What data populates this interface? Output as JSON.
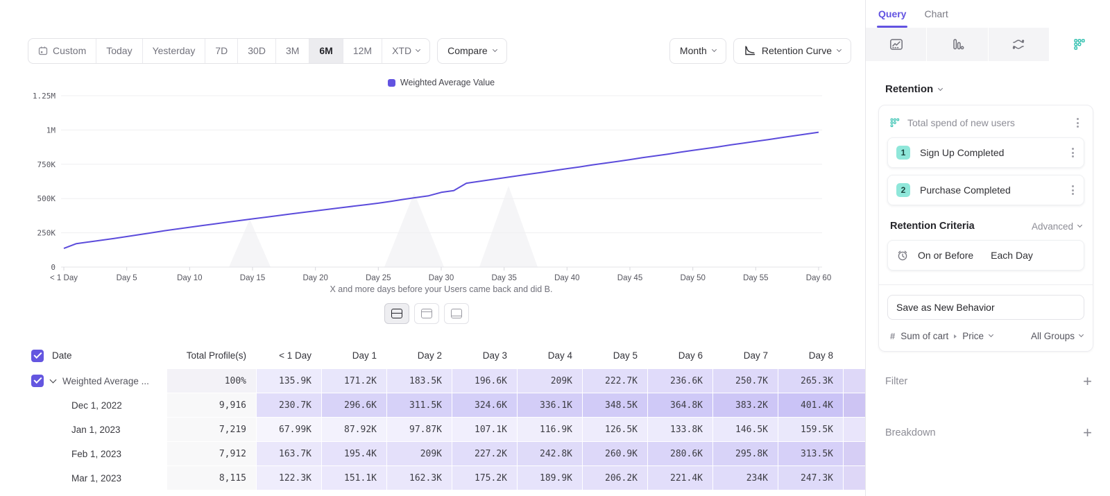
{
  "toolbar": {
    "date_ranges": [
      "Custom",
      "Today",
      "Yesterday",
      "7D",
      "30D",
      "3M",
      "6M",
      "12M",
      "XTD"
    ],
    "active_range": "6M",
    "compare": "Compare",
    "granularity": "Month",
    "chart_type": "Retention Curve"
  },
  "chart": {
    "legend": "Weighted Average Value",
    "caption": "X and more days before your Users came back and did B."
  },
  "chart_data": {
    "type": "line",
    "legend_position": "top-center",
    "grid": "horizontal",
    "x_unit": "day",
    "x_range": [
      0,
      60
    ],
    "ylim_k": [
      0,
      1250
    ],
    "y_ticks": [
      {
        "v": 0,
        "label": "0"
      },
      {
        "v": 250,
        "label": "250K"
      },
      {
        "v": 500,
        "label": "500K"
      },
      {
        "v": 750,
        "label": "750K"
      },
      {
        "v": 1000,
        "label": "1M"
      },
      {
        "v": 1250,
        "label": "1.25M"
      }
    ],
    "x_ticks": [
      {
        "day": 0,
        "label": "< 1 Day"
      },
      {
        "day": 5,
        "label": "Day 5"
      },
      {
        "day": 10,
        "label": "Day 10"
      },
      {
        "day": 15,
        "label": "Day 15"
      },
      {
        "day": 20,
        "label": "Day 20"
      },
      {
        "day": 25,
        "label": "Day 25"
      },
      {
        "day": 30,
        "label": "Day 30"
      },
      {
        "day": 35,
        "label": "Day 35"
      },
      {
        "day": 40,
        "label": "Day 40"
      },
      {
        "day": 45,
        "label": "Day 45"
      },
      {
        "day": 50,
        "label": "Day 50"
      },
      {
        "day": 55,
        "label": "Day 55"
      },
      {
        "day": 60,
        "label": "Day 60"
      }
    ],
    "series": [
      {
        "name": "Weighted Average Value",
        "color": "#5b4bdb",
        "values_k": [
          135.9,
          171.2,
          183.5,
          196.6,
          209,
          222.7,
          236.6,
          250.7,
          265.3,
          278,
          290.5,
          302.9,
          315.2,
          327.4,
          339.5,
          351.5,
          363.4,
          375.2,
          386.9,
          398.5,
          410,
          421.4,
          432.7,
          443.9,
          455,
          466,
          480,
          494,
          507,
          520,
          545,
          558,
          612,
          625,
          638,
          652,
          665,
          678,
          691,
          705,
          718,
          731,
          745,
          758,
          771,
          784,
          798,
          811,
          824,
          838,
          851,
          864,
          877,
          891,
          904,
          917,
          930,
          944,
          957,
          970,
          984
        ]
      }
    ]
  },
  "table": {
    "columns": [
      "Date",
      "Total Profile(s)",
      "< 1 Day",
      "Day 1",
      "Day 2",
      "Day 3",
      "Day 4",
      "Day 5",
      "Day 6",
      "Day 7",
      "Day 8"
    ],
    "rows": [
      {
        "label": "Weighted Average ...",
        "expandable": true,
        "checked": true,
        "profiles": "100%",
        "values": [
          "135.9K",
          "171.2K",
          "183.5K",
          "196.6K",
          "209K",
          "222.7K",
          "236.6K",
          "250.7K",
          "265.3K"
        ],
        "partial_color": "#ded8f8"
      },
      {
        "label": "Dec 1, 2022",
        "profiles": "9,916",
        "values": [
          "230.7K",
          "296.6K",
          "311.5K",
          "324.6K",
          "336.1K",
          "348.5K",
          "364.8K",
          "383.2K",
          "401.4K"
        ],
        "partial_color": "#cdc4f3"
      },
      {
        "label": "Jan 1, 2023",
        "profiles": "7,219",
        "values": [
          "67.99K",
          "87.92K",
          "97.87K",
          "107.1K",
          "116.9K",
          "126.5K",
          "133.8K",
          "146.5K",
          "159.5K"
        ],
        "partial_color": "#e9e5fb"
      },
      {
        "label": "Feb 1, 2023",
        "profiles": "7,912",
        "values": [
          "163.7K",
          "195.4K",
          "209K",
          "227.2K",
          "242.8K",
          "260.9K",
          "280.6K",
          "295.8K",
          "313.5K"
        ],
        "partial_color": "#d6cef5"
      },
      {
        "label": "Mar 1, 2023",
        "profiles": "8,115",
        "values": [
          "122.3K",
          "151.1K",
          "162.3K",
          "175.2K",
          "189.9K",
          "206.2K",
          "221.4K",
          "234K",
          "247.3K"
        ],
        "partial_color": "#ded7f7"
      }
    ]
  },
  "sidebar": {
    "tabs": [
      {
        "label": "Query",
        "active": true
      },
      {
        "label": "Chart",
        "active": false
      }
    ],
    "report_types": [
      "insights",
      "funnels",
      "flows",
      "retention"
    ],
    "active_report_type": "retention",
    "section_title": "Retention",
    "behavior": {
      "title": "Total spend of new users",
      "steps": [
        {
          "num": "1",
          "label": "Sign Up Completed"
        },
        {
          "num": "2",
          "label": "Purchase Completed"
        }
      ],
      "criteria_label": "Retention Criteria",
      "criteria_mode": "Advanced",
      "criteria_type": "On or Before",
      "criteria_unit": "Each Day",
      "save_button": "Save as New Behavior",
      "measure": "Sum of cart",
      "measure_property": "Price",
      "group": "All Groups"
    },
    "filter_label": "Filter",
    "breakdown_label": "Breakdown"
  },
  "colors": {
    "accent": "#6253e1",
    "line": "#5b4bdb",
    "teal": "#2fbfae",
    "heat_base_rgb": "104,84,229",
    "badge_bg": "#8fe7da"
  }
}
